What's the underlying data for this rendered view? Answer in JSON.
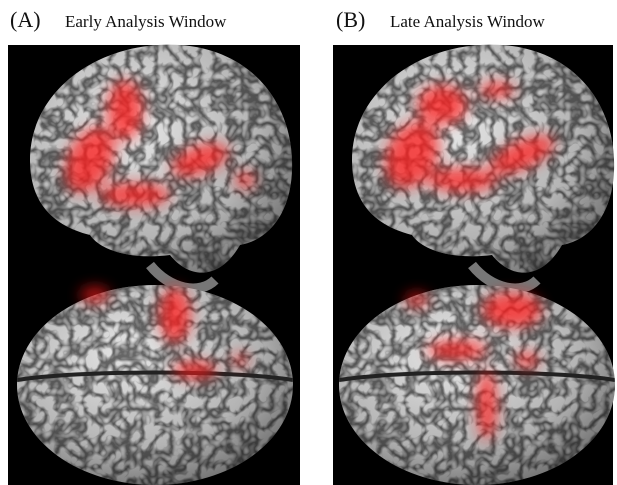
{
  "panels": [
    {
      "label": "(A)",
      "title": "Early Analysis Window"
    },
    {
      "label": "(B)",
      "title": "Late Analysis Window"
    }
  ]
}
